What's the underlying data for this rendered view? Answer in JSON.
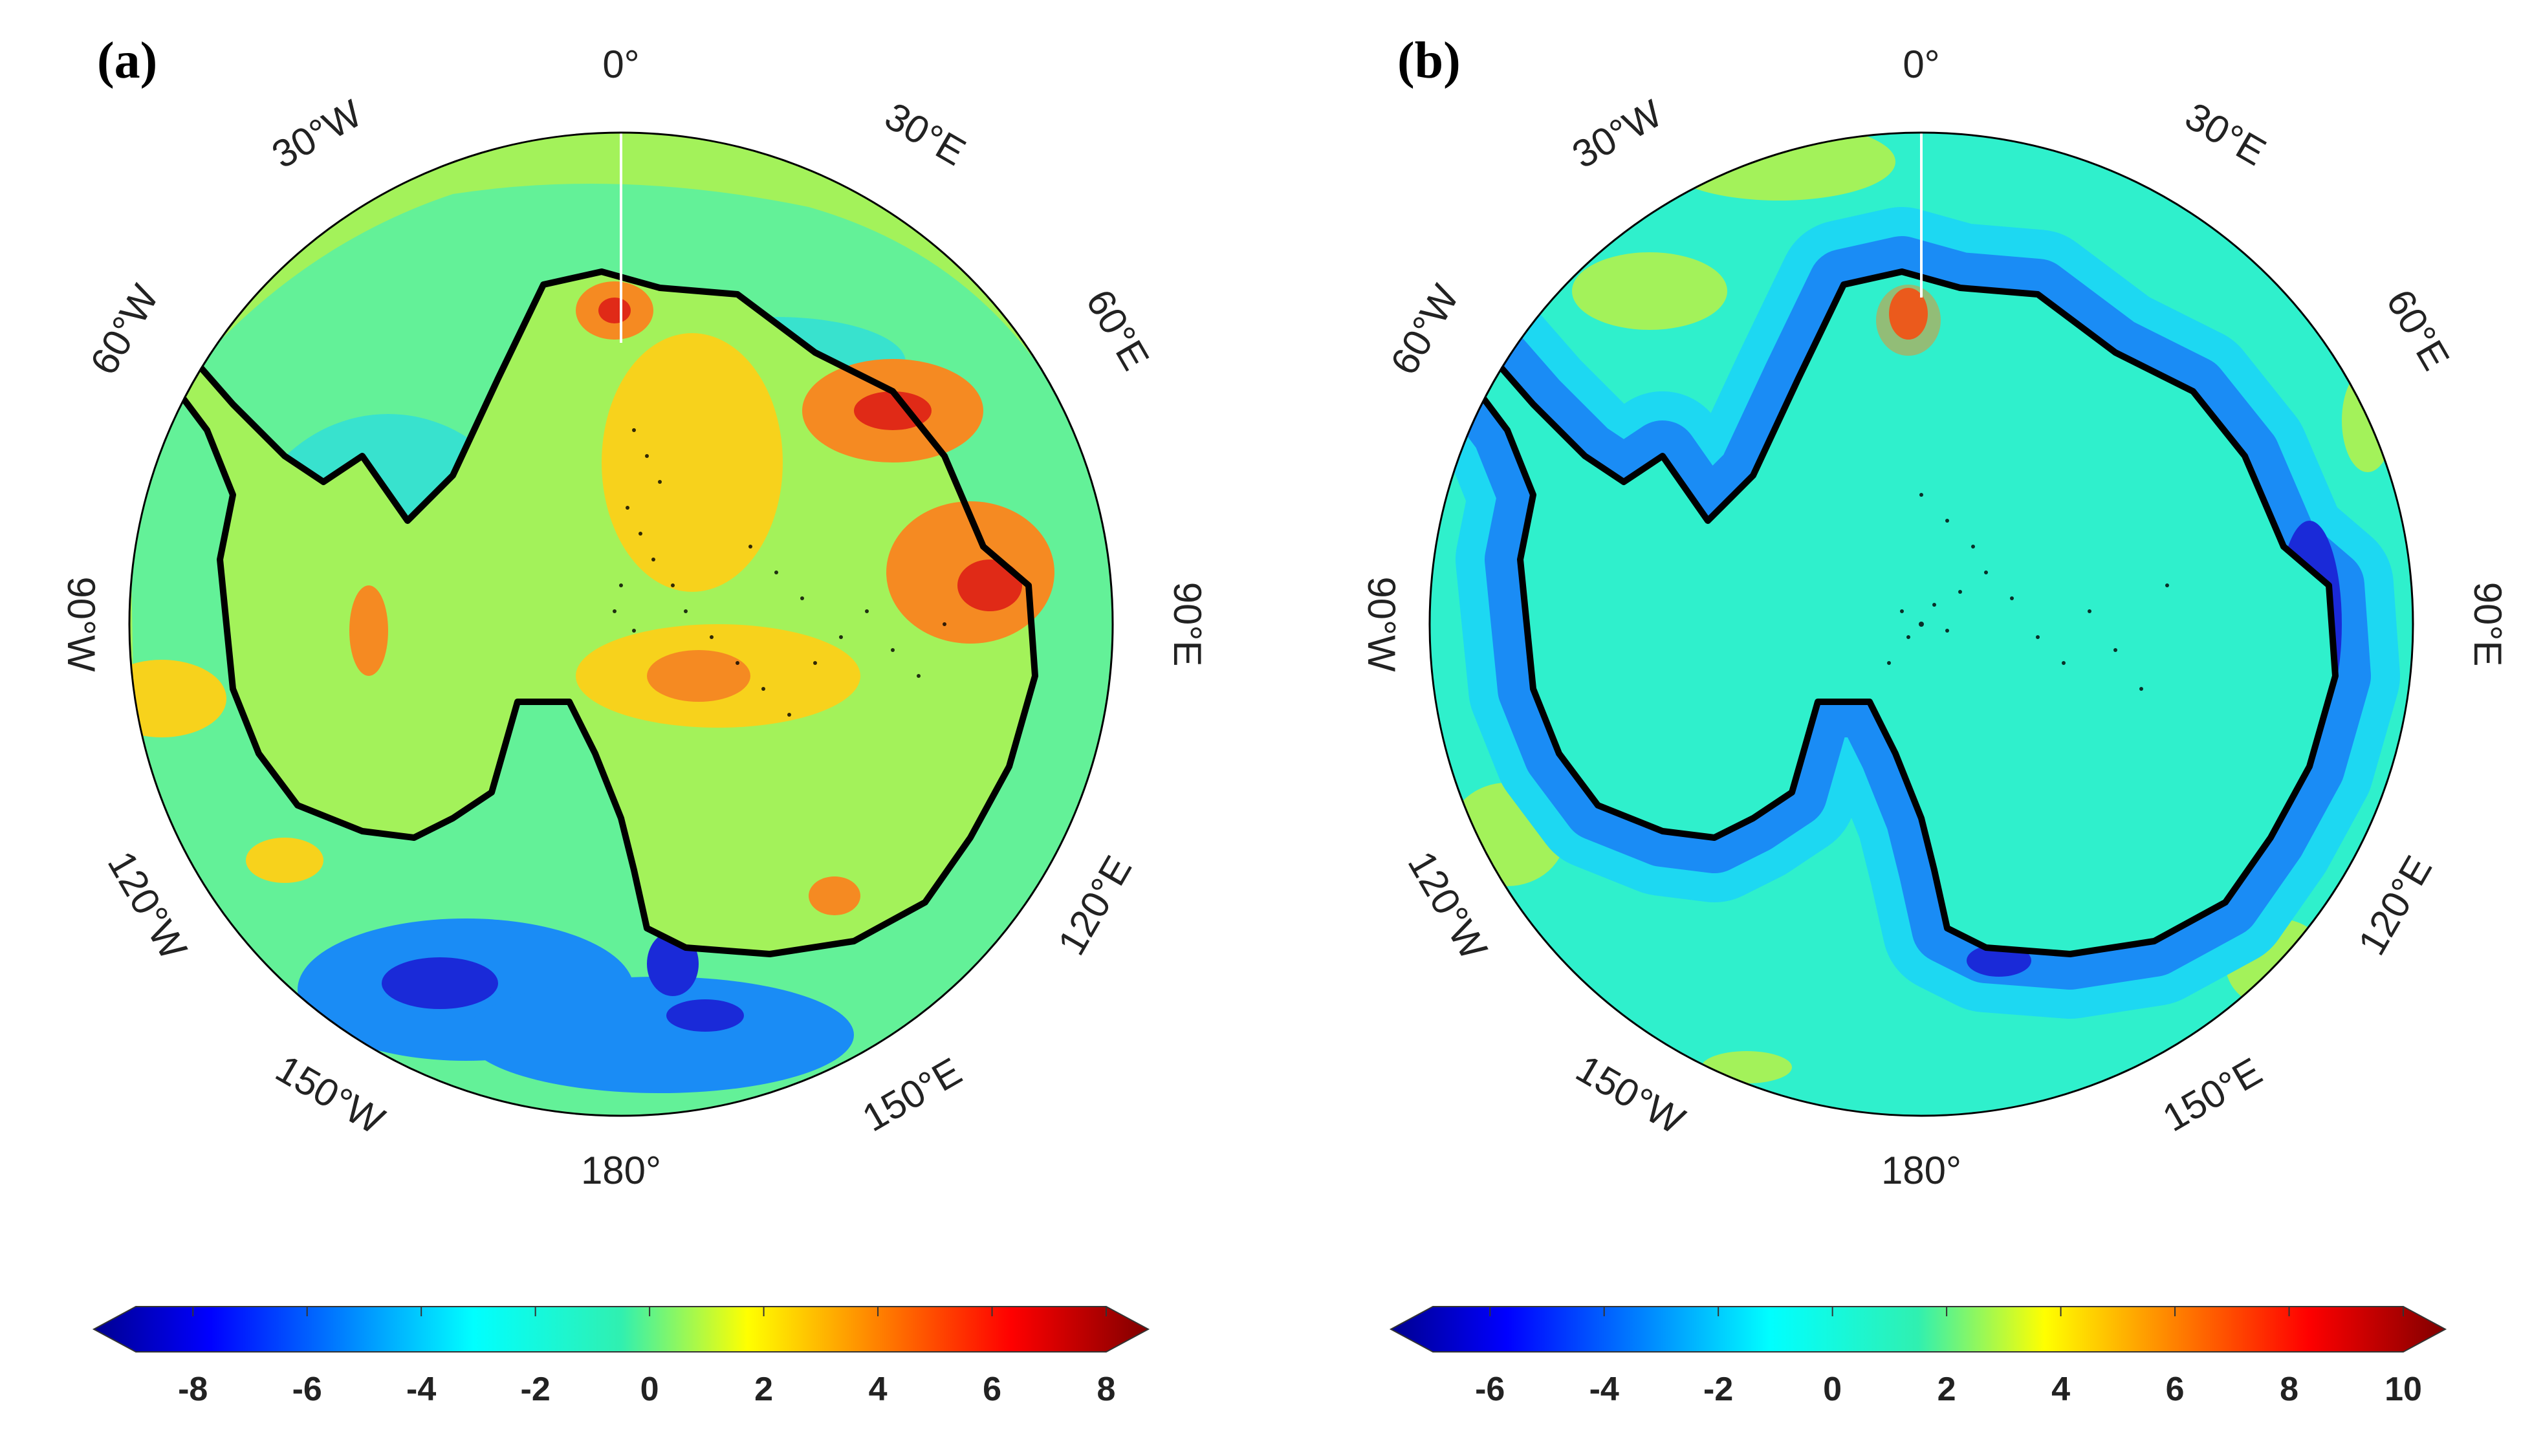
{
  "panels": [
    {
      "label": "(a)",
      "lon_labels": [
        "0°",
        "30°E",
        "60°E",
        "90°E",
        "120°E",
        "150°E",
        "180°",
        "150°W",
        "120°W",
        "90°W",
        "60°W",
        "30°W"
      ],
      "colorbar": {
        "min": -9,
        "max": 8,
        "ticks": [
          "-8",
          "-6",
          "-4",
          "-2",
          "0",
          "2",
          "4",
          "6",
          "8"
        ]
      }
    },
    {
      "label": "(b)",
      "lon_labels": [
        "0°",
        "30°E",
        "60°E",
        "90°E",
        "120°E",
        "150°E",
        "180°",
        "150°W",
        "120°W",
        "90°W",
        "60°W",
        "30°W"
      ],
      "colorbar": {
        "min": -7,
        "max": 10,
        "ticks": [
          "-6",
          "-4",
          "-2",
          "0",
          "2",
          "4",
          "6",
          "8",
          "10"
        ]
      }
    }
  ],
  "colors": {
    "background_field": "#2ff0cc",
    "light_blue": "#1dd8f2",
    "blue": "#1a8cf5",
    "dark_blue": "#1a2ad8",
    "lime": "#a3f25a",
    "yellow": "#f7d21c",
    "orange": "#f58a22",
    "red": "#e02a17",
    "coast": "#000000"
  }
}
